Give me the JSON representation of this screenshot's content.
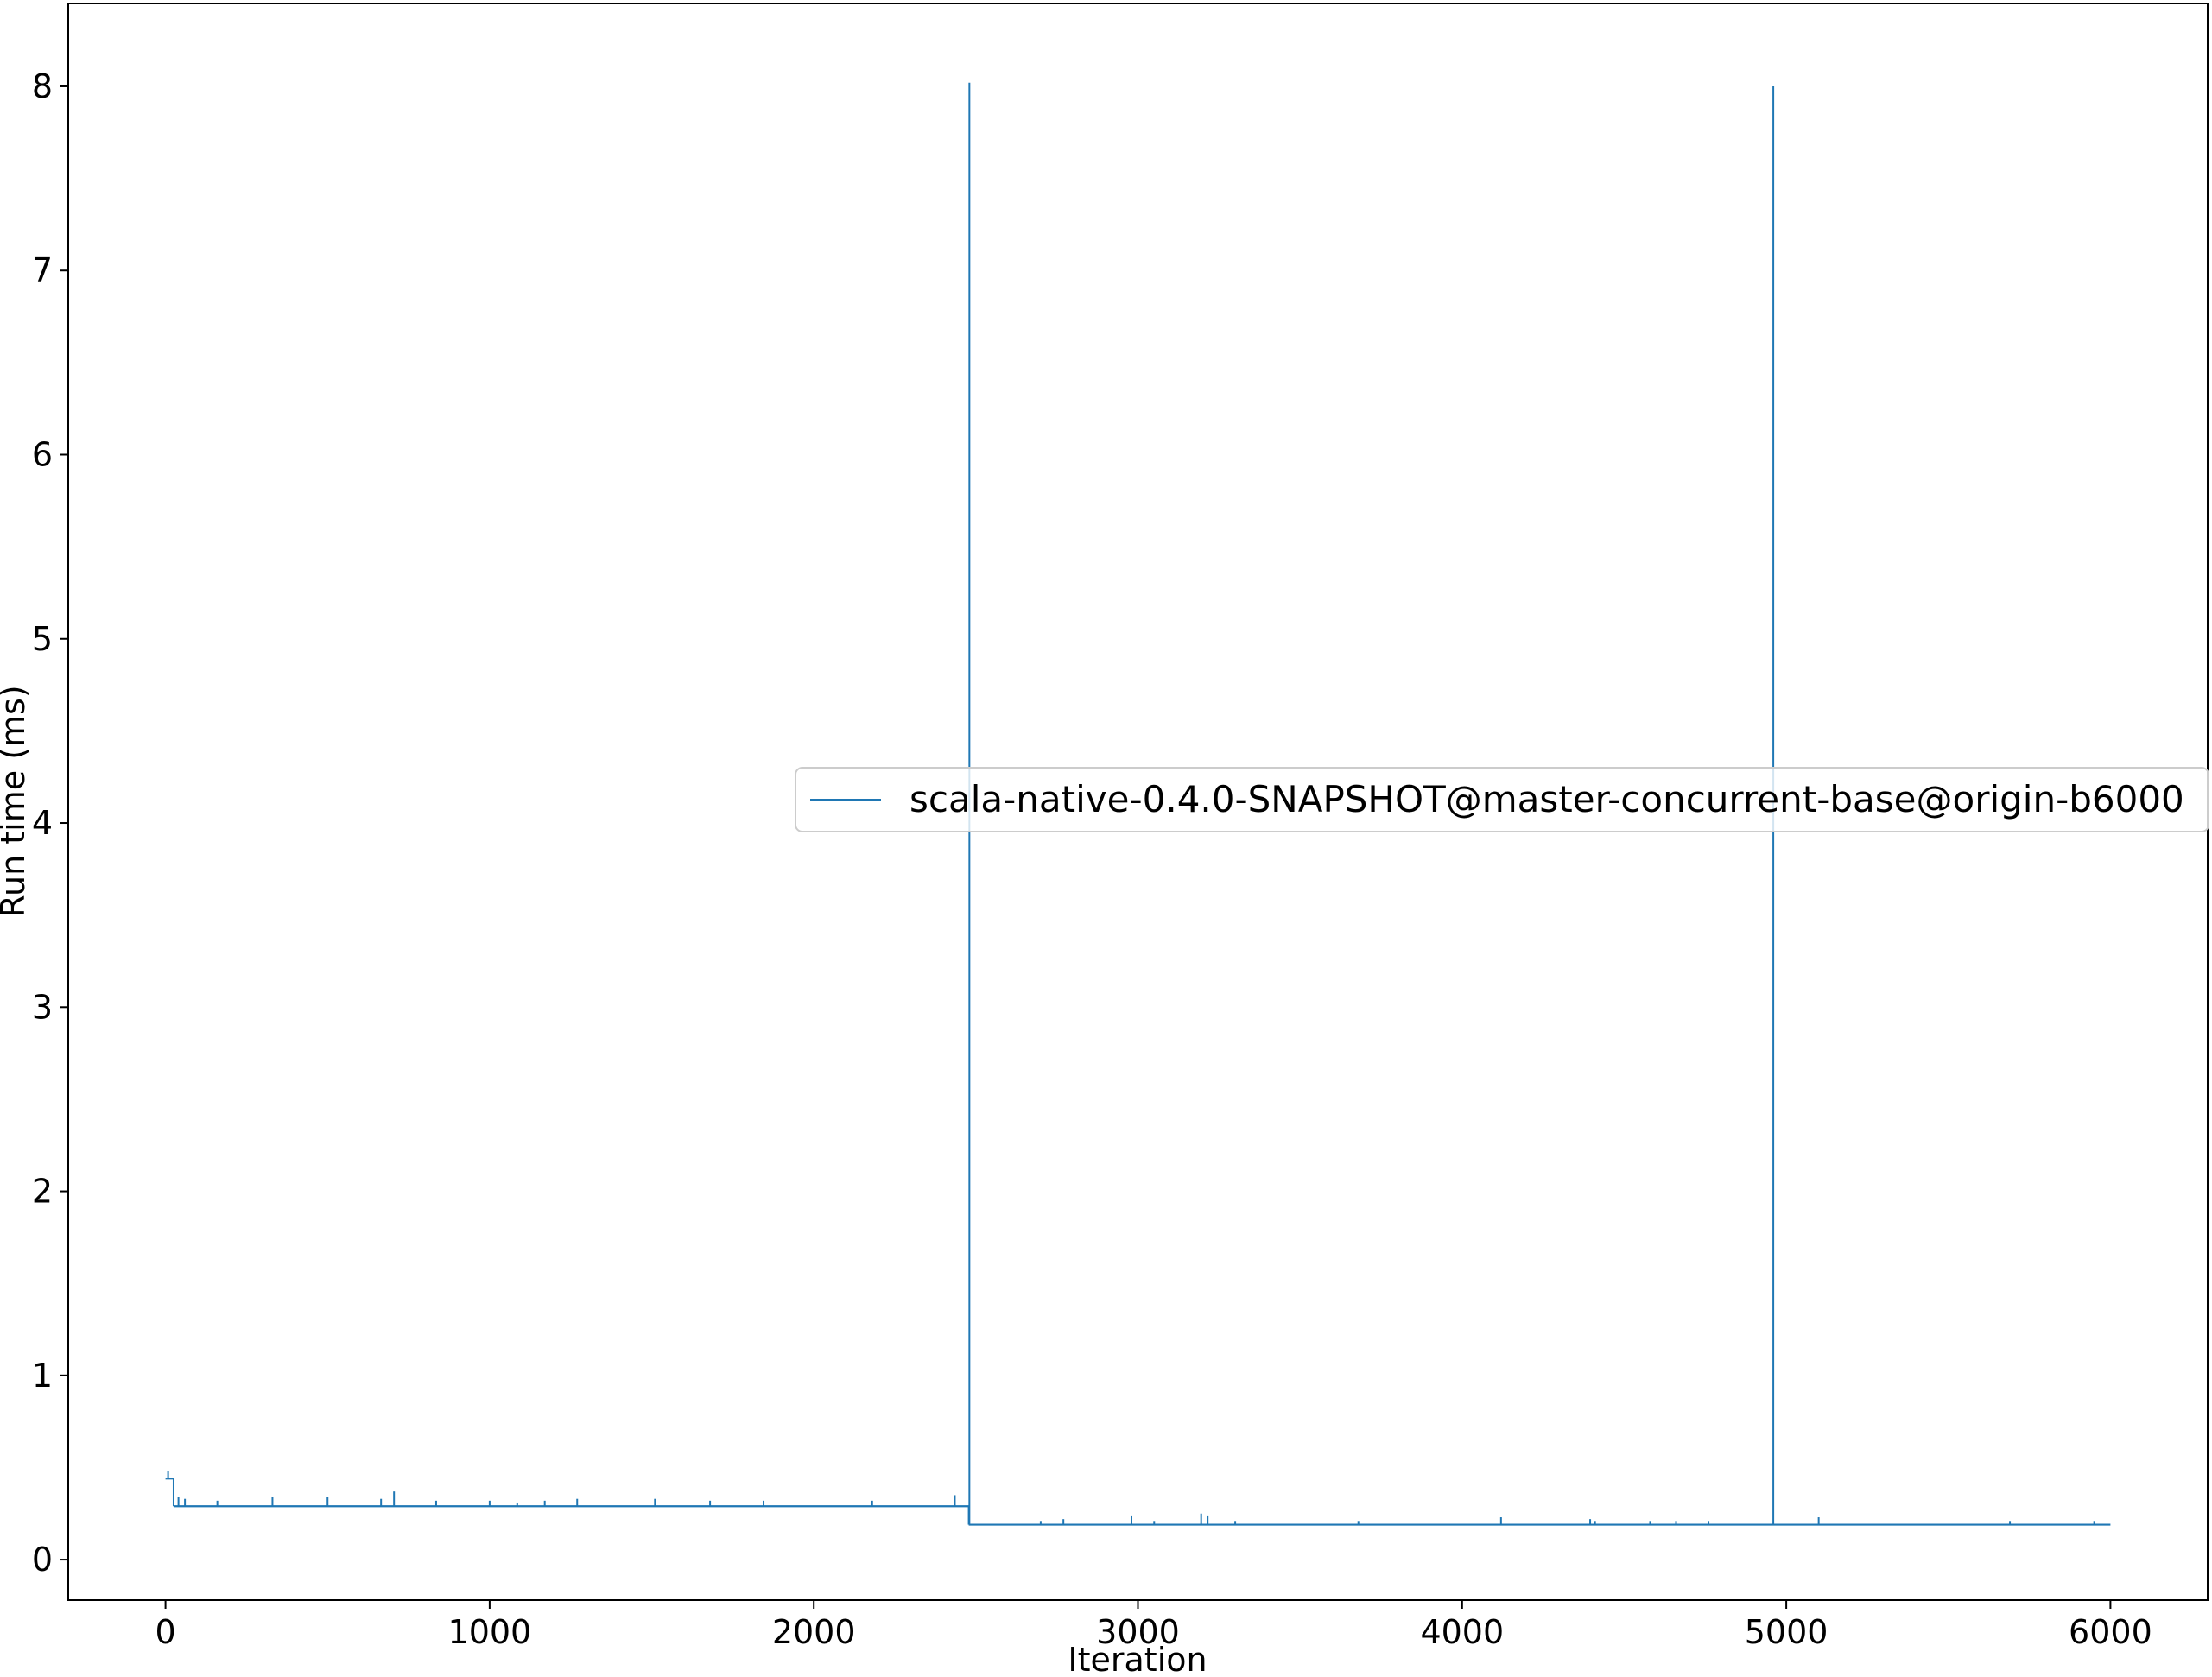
{
  "chart_data": {
    "type": "line",
    "title": "",
    "xlabel": "Iteration",
    "ylabel": "Run time (ms)",
    "xlim": [
      -300,
      6300
    ],
    "ylim": [
      -0.22,
      8.45
    ],
    "xticks": [
      0,
      1000,
      2000,
      3000,
      4000,
      5000,
      6000
    ],
    "xtick_labels": [
      "0",
      "1000",
      "2000",
      "3000",
      "4000",
      "5000",
      "6000"
    ],
    "yticks": [
      0,
      1,
      2,
      3,
      4,
      5,
      6,
      7,
      8
    ],
    "ytick_labels": [
      "0",
      "1",
      "2",
      "3",
      "4",
      "5",
      "6",
      "7",
      "8"
    ],
    "grid": false,
    "legend_position": "center-right",
    "colors": {
      "series": "#1f77b4",
      "axes": "#000000",
      "legend_border": "#cccccc"
    },
    "series": [
      {
        "name": "scala-native-0.4.0-SNAPSHOT@master-concurrent-base@origin-b6000",
        "baselines": [
          {
            "x": [
              0,
              5
            ],
            "y": 0.44
          },
          {
            "x": [
              5,
              25
            ],
            "y": 0.44
          },
          {
            "x": [
              25,
              2478
            ],
            "y": 0.29
          },
          {
            "x": [
              2478,
              6000
            ],
            "y": 0.19
          }
        ],
        "spikes": [
          {
            "x": 8,
            "y": 0.48
          },
          {
            "x": 40,
            "y": 0.34
          },
          {
            "x": 60,
            "y": 0.33
          },
          {
            "x": 160,
            "y": 0.32
          },
          {
            "x": 330,
            "y": 0.34
          },
          {
            "x": 500,
            "y": 0.34
          },
          {
            "x": 665,
            "y": 0.33
          },
          {
            "x": 705,
            "y": 0.37
          },
          {
            "x": 835,
            "y": 0.32
          },
          {
            "x": 1000,
            "y": 0.32
          },
          {
            "x": 1085,
            "y": 0.31
          },
          {
            "x": 1170,
            "y": 0.32
          },
          {
            "x": 1270,
            "y": 0.33
          },
          {
            "x": 1510,
            "y": 0.33
          },
          {
            "x": 1680,
            "y": 0.32
          },
          {
            "x": 1845,
            "y": 0.32
          },
          {
            "x": 2180,
            "y": 0.32
          },
          {
            "x": 2435,
            "y": 0.35
          },
          {
            "x": 2480,
            "y": 8.02
          },
          {
            "x": 2700,
            "y": 0.21
          },
          {
            "x": 2770,
            "y": 0.22
          },
          {
            "x": 2980,
            "y": 0.24
          },
          {
            "x": 3050,
            "y": 0.21
          },
          {
            "x": 3195,
            "y": 0.25
          },
          {
            "x": 3215,
            "y": 0.24
          },
          {
            "x": 3300,
            "y": 0.21
          },
          {
            "x": 3680,
            "y": 0.21
          },
          {
            "x": 4120,
            "y": 0.23
          },
          {
            "x": 4395,
            "y": 0.22
          },
          {
            "x": 4410,
            "y": 0.21
          },
          {
            "x": 4580,
            "y": 0.21
          },
          {
            "x": 4660,
            "y": 0.21
          },
          {
            "x": 4760,
            "y": 0.21
          },
          {
            "x": 4960,
            "y": 8.0
          },
          {
            "x": 5100,
            "y": 0.23
          },
          {
            "x": 5690,
            "y": 0.21
          },
          {
            "x": 5950,
            "y": 0.21
          }
        ]
      }
    ]
  }
}
